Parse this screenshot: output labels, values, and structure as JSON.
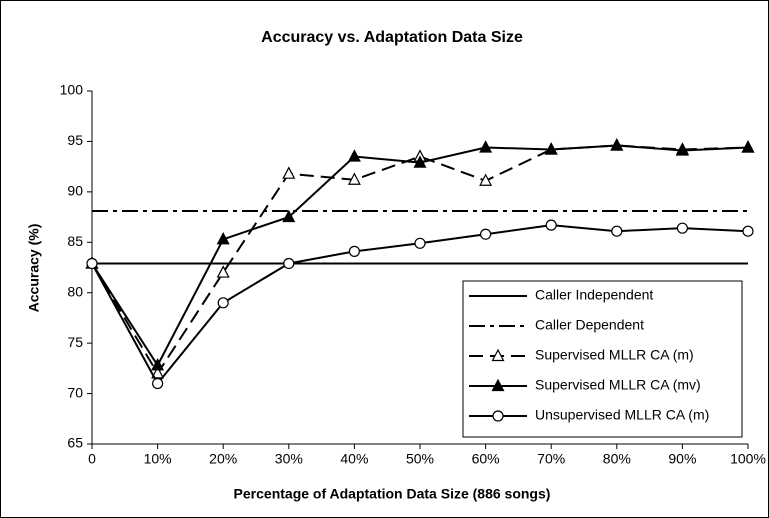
{
  "chart_data": {
    "type": "line",
    "title": "Accuracy vs. Adaptation Data Size",
    "x_label": "Percentage of Adaptation Data Size (886 songs)",
    "y_label": "Accuracy (%)",
    "categories": [
      "0",
      "10%",
      "20%",
      "30%",
      "40%",
      "50%",
      "60%",
      "70%",
      "80%",
      "90%",
      "100%"
    ],
    "ylim": [
      65,
      100
    ],
    "yticks": [
      65,
      70,
      75,
      80,
      85,
      90,
      95,
      100
    ],
    "grid": false,
    "legend": "lower right",
    "series": [
      {
        "name": "Caller Independent",
        "color": "#000000",
        "line_style": "solid",
        "marker": "none",
        "values": [
          82.9,
          82.9,
          82.9,
          82.9,
          82.9,
          82.9,
          82.9,
          82.9,
          82.9,
          82.9,
          82.9
        ]
      },
      {
        "name": "Caller Dependent",
        "color": "#000000",
        "line_style": "dashdot",
        "marker": "none",
        "values": [
          88.1,
          88.1,
          88.1,
          88.1,
          88.1,
          88.1,
          88.1,
          88.1,
          88.1,
          88.1,
          88.1
        ]
      },
      {
        "name": "Supervised MLLR CA (m)",
        "color": "#000000",
        "line_style": "dashed",
        "marker": "triangle-open",
        "values": [
          82.9,
          72.0,
          82.0,
          91.8,
          91.2,
          93.5,
          91.1,
          94.2,
          94.6,
          94.2,
          94.4
        ]
      },
      {
        "name": "Supervised MLLR CA (mv)",
        "color": "#000000",
        "line_style": "solid",
        "marker": "triangle-filled",
        "values": [
          82.9,
          72.8,
          85.3,
          87.5,
          93.5,
          92.9,
          94.4,
          94.2,
          94.6,
          94.1,
          94.4
        ]
      },
      {
        "name": "Unsupervised MLLR CA (m)",
        "color": "#000000",
        "line_style": "solid",
        "marker": "circle-open",
        "values": [
          82.9,
          71.0,
          79.0,
          82.9,
          84.1,
          84.9,
          85.8,
          86.7,
          86.1,
          86.4,
          86.1
        ]
      }
    ]
  }
}
